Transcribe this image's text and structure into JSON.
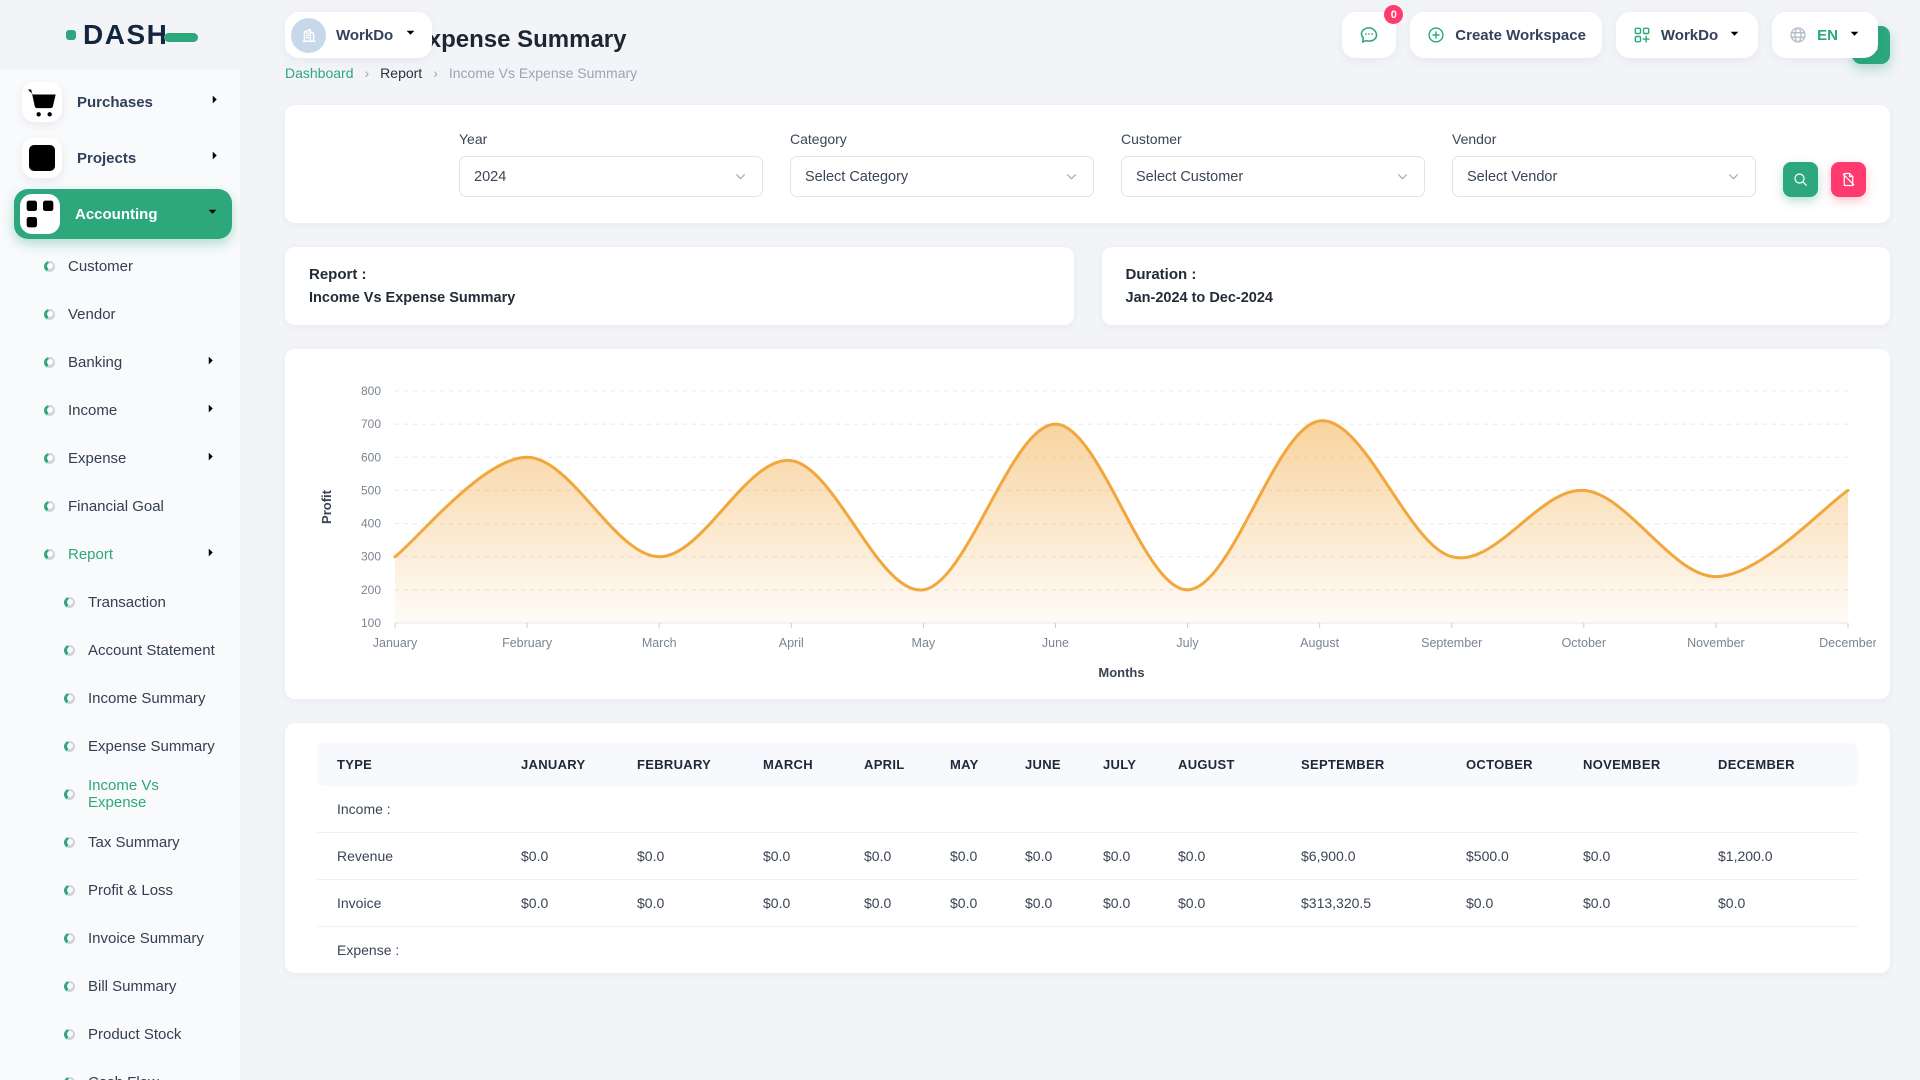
{
  "brand": {
    "name": "DASH",
    "accent_color": "#2DA77C"
  },
  "topbar": {
    "workspace_chip": {
      "label": "WorkDo",
      "icon": "building-icon"
    },
    "messages": {
      "icon": "chat-icon",
      "badge": "0",
      "badge_color": "#FF3A6E"
    },
    "create_workspace": {
      "label": "Create Workspace",
      "icon": "plus-circle-icon"
    },
    "workspace_menu": {
      "label": "WorkDo",
      "icon": "grid-plus-icon"
    },
    "language": {
      "label": "EN",
      "icon": "globe-icon"
    }
  },
  "sidebar": {
    "top_items": [
      {
        "label": "Purchases",
        "icon": "cart-icon",
        "chevron": "right",
        "active": false
      },
      {
        "label": "Projects",
        "icon": "tasks-icon",
        "chevron": "right",
        "active": false
      },
      {
        "label": "Accounting",
        "icon": "grid-plus-icon",
        "chevron": "down",
        "active": true
      }
    ],
    "accounting_children": [
      {
        "label": "Customer",
        "chevron": null,
        "active": false
      },
      {
        "label": "Vendor",
        "chevron": null,
        "active": false
      },
      {
        "label": "Banking",
        "chevron": "right",
        "active": false
      },
      {
        "label": "Income",
        "chevron": "right",
        "active": false
      },
      {
        "label": "Expense",
        "chevron": "right",
        "active": false
      },
      {
        "label": "Financial Goal",
        "chevron": null,
        "active": false
      },
      {
        "label": "Report",
        "chevron": "right",
        "active": true
      }
    ],
    "report_children": [
      {
        "label": "Transaction",
        "active": false
      },
      {
        "label": "Account Statement",
        "active": false
      },
      {
        "label": "Income Summary",
        "active": false
      },
      {
        "label": "Expense Summary",
        "active": false
      },
      {
        "label": "Income Vs Expense",
        "active": true
      },
      {
        "label": "Tax Summary",
        "active": false
      },
      {
        "label": "Profit & Loss",
        "active": false
      },
      {
        "label": "Invoice Summary",
        "active": false
      },
      {
        "label": "Bill Summary",
        "active": false
      },
      {
        "label": "Product Stock",
        "active": false
      },
      {
        "label": "Cash Flow",
        "active": false
      }
    ]
  },
  "page": {
    "title": "Income Vs Expense Summary",
    "breadcrumb": [
      "Dashboard",
      "Report",
      "Income Vs Expense Summary"
    ],
    "download_button_icon": "download-icon"
  },
  "filters": {
    "fields": [
      {
        "label": "Year",
        "value": "2024"
      },
      {
        "label": "Category",
        "value": "Select Category"
      },
      {
        "label": "Customer",
        "value": "Select Customer"
      },
      {
        "label": "Vendor",
        "value": "Select Vendor"
      }
    ],
    "search_button_icon": "search-icon",
    "reset_button_icon": "file-slash-icon",
    "search_color": "#2DA77C",
    "reset_color": "#FF3A6E"
  },
  "summary_cards": [
    {
      "title": "Report :",
      "value": "Income Vs Expense Summary"
    },
    {
      "title": "Duration :",
      "value": "Jan-2024 to Dec-2024"
    }
  ],
  "chart_data": {
    "type": "area",
    "title": "",
    "x": [
      "January",
      "February",
      "March",
      "April",
      "May",
      "June",
      "July",
      "August",
      "September",
      "October",
      "November",
      "December"
    ],
    "series": [
      {
        "name": "Profit",
        "values": [
          300,
          600,
          300,
          590,
          200,
          700,
          200,
          710,
          300,
          500,
          240,
          500
        ]
      }
    ],
    "xlabel": "Months",
    "ylabel": "Profit",
    "ylim": [
      100,
      800
    ],
    "ytick_step": 100,
    "grid": "dashed-horizontal",
    "legend": "none",
    "line_color": "#f2a73d",
    "smooth": true
  },
  "table": {
    "columns": [
      "TYPE",
      "JANUARY",
      "FEBRUARY",
      "MARCH",
      "APRIL",
      "MAY",
      "JUNE",
      "JULY",
      "AUGUST",
      "SEPTEMBER",
      "OCTOBER",
      "NOVEMBER",
      "DECEMBER"
    ],
    "rows": [
      {
        "kind": "section",
        "label": "Income :"
      },
      {
        "kind": "data",
        "label": "Revenue",
        "values": [
          "$0.0",
          "$0.0",
          "$0.0",
          "$0.0",
          "$0.0",
          "$0.0",
          "$0.0",
          "$0.0",
          "$6,900.0",
          "$500.0",
          "$0.0",
          "$1,200.0"
        ]
      },
      {
        "kind": "data",
        "label": "Invoice",
        "values": [
          "$0.0",
          "$0.0",
          "$0.0",
          "$0.0",
          "$0.0",
          "$0.0",
          "$0.0",
          "$0.0",
          "$313,320.5",
          "$0.0",
          "$0.0",
          "$0.0"
        ]
      },
      {
        "kind": "section",
        "label": "Expense :"
      }
    ]
  }
}
